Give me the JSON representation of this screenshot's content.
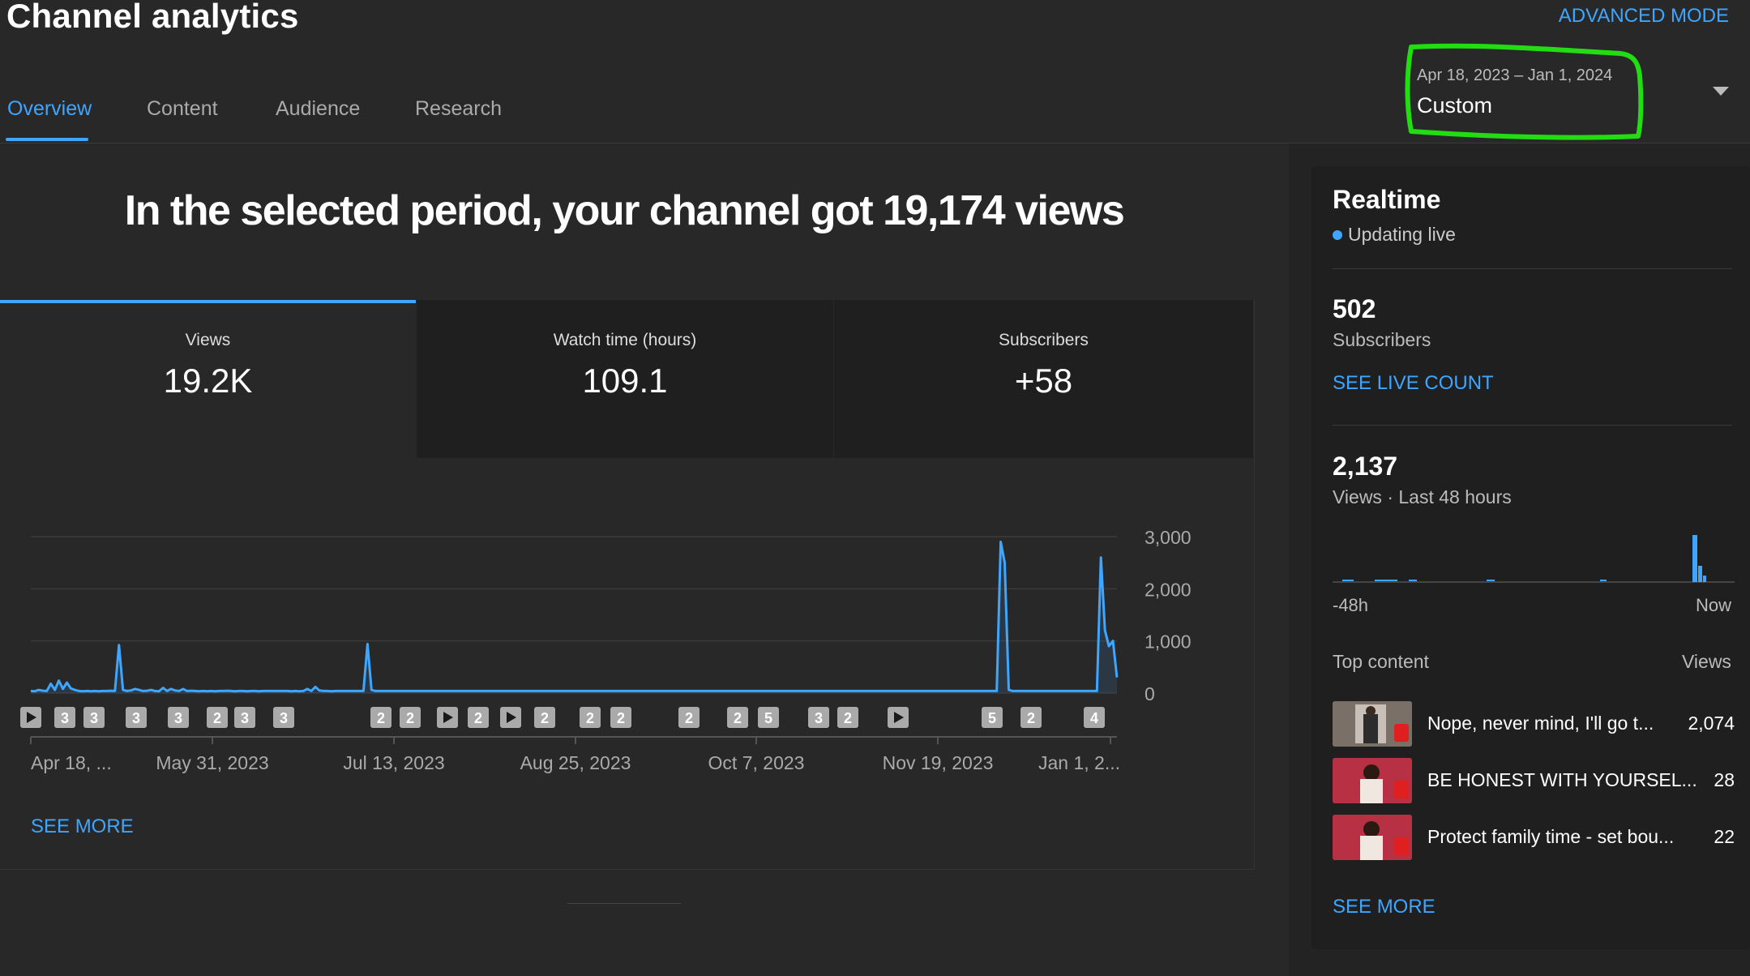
{
  "header": {
    "title": "Channel analytics",
    "advanced_mode": "ADVANCED MODE",
    "tabs": [
      {
        "label": "Overview",
        "active": true
      },
      {
        "label": "Content",
        "active": false
      },
      {
        "label": "Audience",
        "active": false
      },
      {
        "label": "Research",
        "active": false
      }
    ],
    "date_range": {
      "range": "Apr 18, 2023 – Jan 1, 2024",
      "label": "Custom"
    }
  },
  "overview": {
    "headline": "In the selected period, your channel got 19,174 views",
    "metrics": [
      {
        "label": "Views",
        "value": "19.2K"
      },
      {
        "label": "Watch time (hours)",
        "value": "109.1"
      },
      {
        "label": "Subscribers",
        "value": "+58"
      }
    ],
    "see_more": "SEE MORE",
    "accent_color": "#3ea6ff"
  },
  "chart_data": {
    "type": "line",
    "series": [
      {
        "values": [
          40,
          35,
          60,
          45,
          40,
          180,
          60,
          240,
          80,
          200,
          90,
          60,
          40,
          35,
          40,
          35,
          40,
          35,
          40,
          40,
          45,
          40,
          920,
          60,
          40,
          50,
          80,
          60,
          40,
          45,
          60,
          40,
          35,
          100,
          40,
          80,
          50,
          40,
          80,
          40,
          45,
          40,
          35,
          40,
          35,
          40,
          35,
          40,
          40,
          45,
          40,
          35,
          40,
          40,
          35,
          40,
          40,
          35,
          40,
          40,
          40,
          40,
          40,
          40,
          40,
          35,
          40,
          35,
          40,
          80,
          40,
          120,
          50,
          40,
          40,
          35,
          40,
          40,
          40,
          40,
          40,
          40,
          40,
          40,
          940,
          60,
          40,
          40,
          40,
          40,
          40,
          40,
          40,
          40,
          40,
          40,
          40,
          40,
          40,
          40,
          40,
          40,
          40,
          40,
          40,
          40,
          40,
          40,
          40,
          40,
          40,
          40,
          40,
          40,
          40,
          40,
          40,
          40,
          40,
          40,
          40,
          40,
          40,
          40,
          40,
          40,
          40,
          40,
          40,
          40,
          40,
          40,
          40,
          40,
          40,
          40,
          40,
          40,
          40,
          40,
          40,
          40,
          40,
          40,
          40,
          40,
          40,
          40,
          40,
          40,
          40,
          40,
          40,
          40,
          40,
          40,
          40,
          40,
          40,
          40,
          40,
          40,
          40,
          40,
          40,
          40,
          40,
          40,
          40,
          40,
          40,
          40,
          40,
          40,
          40,
          40,
          40,
          40,
          40,
          40,
          40,
          40,
          40,
          40,
          40,
          40,
          40,
          40,
          40,
          40,
          40,
          40,
          40,
          40,
          40,
          40,
          40,
          40,
          40,
          40,
          40,
          40,
          40,
          40,
          40,
          40,
          40,
          40,
          40,
          40,
          40,
          40,
          40,
          40,
          40,
          40,
          40,
          40,
          40,
          40,
          40,
          40,
          40,
          40,
          40,
          40,
          40,
          40,
          40,
          40,
          40,
          40,
          40,
          40,
          40,
          40,
          40,
          40,
          40,
          40,
          40,
          40,
          2900,
          2500,
          60,
          40,
          40,
          40,
          40,
          40,
          40,
          40,
          40,
          40,
          40,
          40,
          40,
          40,
          40,
          40,
          40,
          40,
          40,
          40,
          40,
          40,
          40,
          2600,
          1200,
          900,
          1000,
          300
        ]
      }
    ],
    "x_tick_labels": [
      "Apr 18, ...",
      "May 31, 2023",
      "Jul 13, 2023",
      "Aug 25, 2023",
      "Oct 7, 2023",
      "Nov 19, 2023",
      "Jan 1, 2..."
    ],
    "y_tick_labels": [
      "3,000",
      "2,000",
      "1,000",
      "0"
    ],
    "ylim": [
      0,
      3000
    ],
    "grid": true,
    "markers": [
      "▶",
      "3",
      "3",
      "3",
      "3",
      "2",
      "3",
      "3",
      "2",
      "2",
      "▶",
      "2",
      "▶",
      "2",
      "2",
      "2",
      "2",
      "2",
      "5",
      "3",
      "2",
      "▶",
      "5",
      "2",
      "4"
    ]
  },
  "realtime": {
    "title": "Realtime",
    "status": "Updating live",
    "subscribers_value": "502",
    "subscribers_label": "Subscribers",
    "see_live_count": "SEE LIVE COUNT",
    "views_value": "2,137",
    "views_label": "Views · Last 48 hours",
    "mini_chart": {
      "start_label": "-48h",
      "end_label": "Now"
    },
    "top_content_label": "Top content",
    "top_content_views_label": "Views",
    "top_content": [
      {
        "title": "Nope, never mind, I'll go t...",
        "views": "2,074"
      },
      {
        "title": "BE HONEST WITH YOURSEL...",
        "views": "28"
      },
      {
        "title": "Protect family time - set bou...",
        "views": "22"
      }
    ],
    "see_more": "SEE MORE"
  }
}
